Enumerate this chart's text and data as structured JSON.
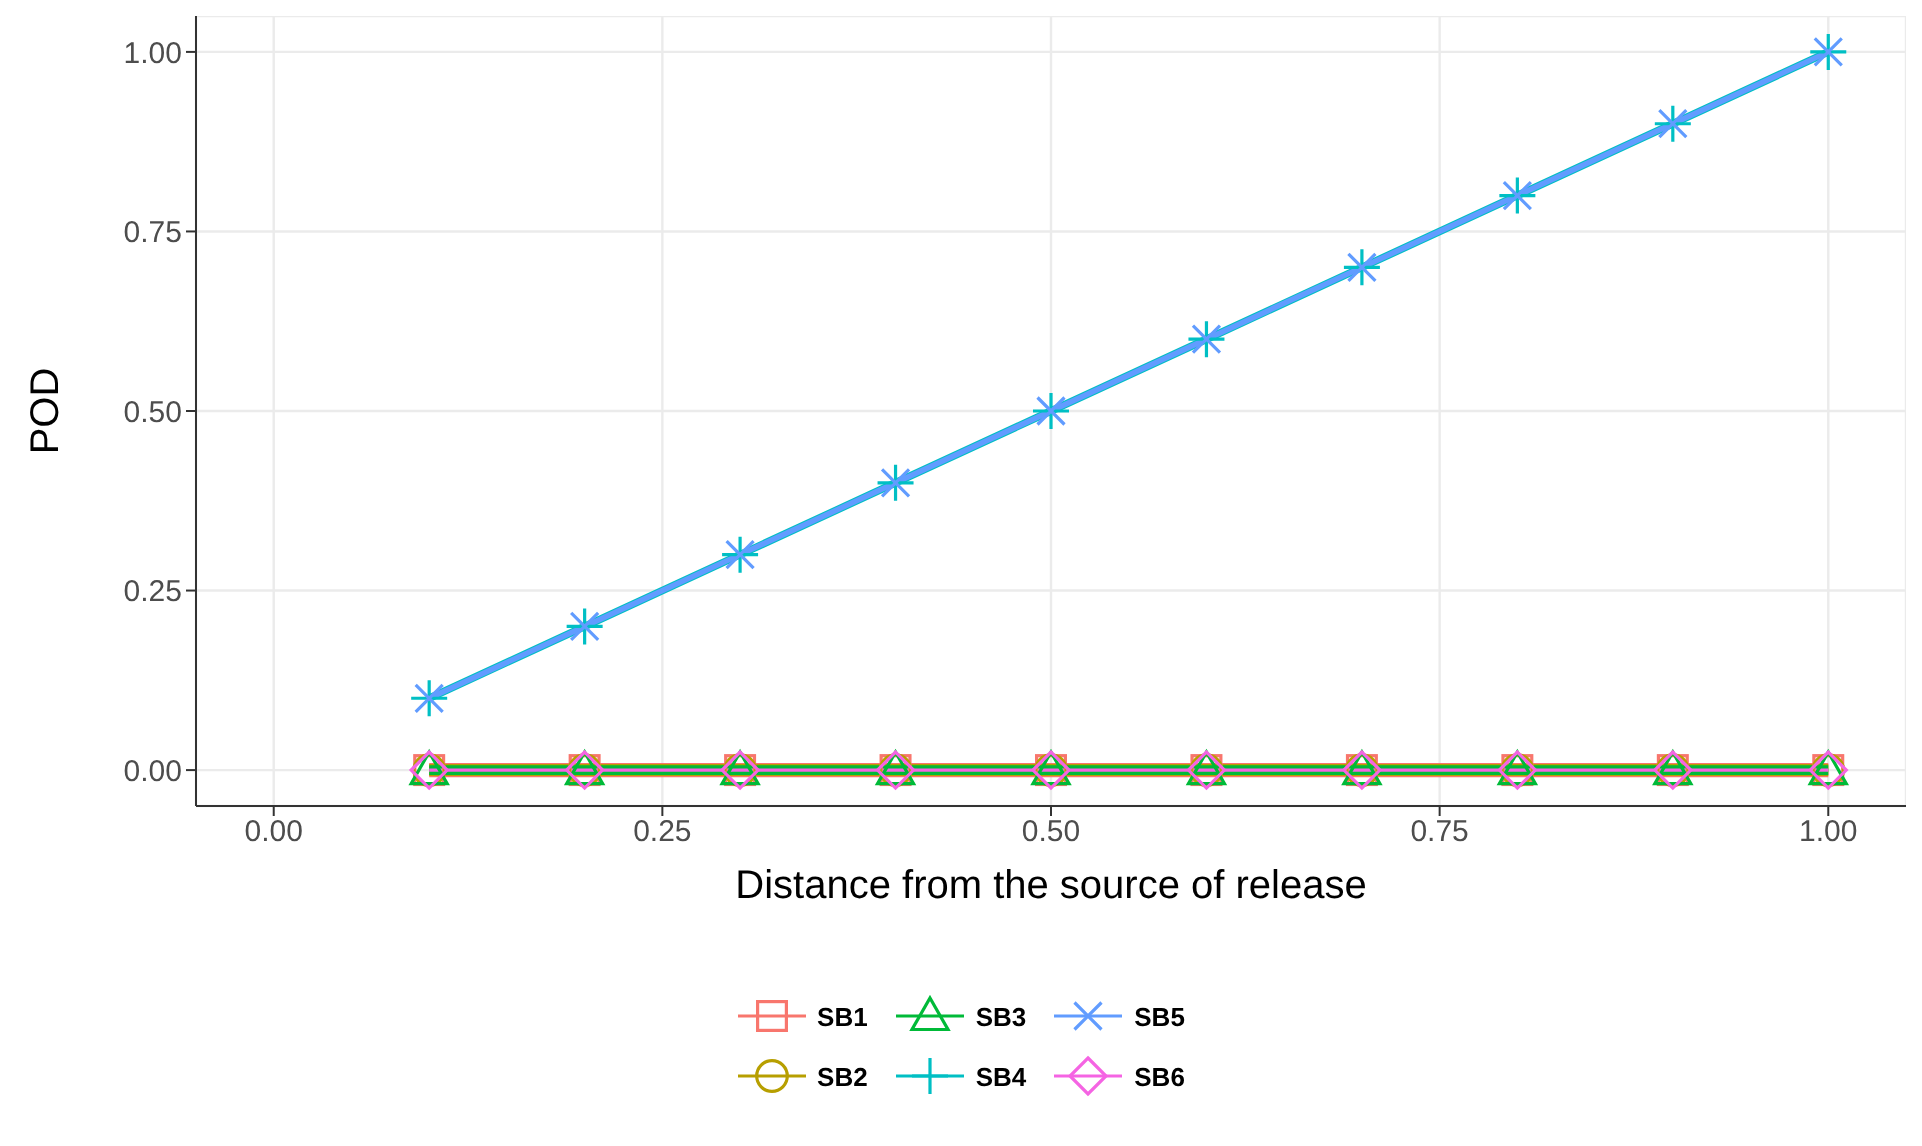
{
  "chart_data": {
    "type": "line",
    "xlabel": "Distance from the source of release",
    "ylabel": "POD",
    "x": [
      0.1,
      0.2,
      0.3,
      0.4,
      0.5,
      0.6,
      0.7,
      0.8,
      0.9,
      1.0
    ],
    "xlim": [
      -0.05,
      1.05
    ],
    "ylim": [
      -0.05,
      1.05
    ],
    "xticks": [
      {
        "value": 0,
        "label": "0.00"
      },
      {
        "value": 0.25,
        "label": "0.25"
      },
      {
        "value": 0.5,
        "label": "0.50"
      },
      {
        "value": 0.75,
        "label": "0.75"
      },
      {
        "value": 1,
        "label": "1.00"
      }
    ],
    "yticks": [
      {
        "value": 0,
        "label": "0.00"
      },
      {
        "value": 0.25,
        "label": "0.25"
      },
      {
        "value": 0.5,
        "label": "0.50"
      },
      {
        "value": 0.75,
        "label": "0.75"
      },
      {
        "value": 1,
        "label": "1.00"
      }
    ],
    "grid": true,
    "legend": "bottom",
    "line_style": "solid",
    "series": [
      {
        "name": "SB1",
        "color": "#f8766d",
        "marker": "square",
        "values": [
          0,
          0,
          0,
          0,
          0,
          0,
          0,
          0,
          0,
          0
        ]
      },
      {
        "name": "SB2",
        "color": "#b79f00",
        "marker": "circle",
        "values": [
          0,
          0,
          0,
          0,
          0,
          0,
          0,
          0,
          0,
          0
        ]
      },
      {
        "name": "SB3",
        "color": "#00ba38",
        "marker": "triangle",
        "values": [
          0,
          0,
          0,
          0,
          0,
          0,
          0,
          0,
          0,
          0
        ]
      },
      {
        "name": "SB4",
        "color": "#00bfc4",
        "marker": "cross",
        "values": [
          0.1,
          0.2,
          0.3,
          0.4,
          0.5,
          0.6,
          0.7,
          0.8,
          0.9,
          1.0
        ]
      },
      {
        "name": "SB5",
        "color": "#619cff",
        "marker": "x",
        "values": [
          0.1,
          0.2,
          0.3,
          0.4,
          0.5,
          0.6,
          0.7,
          0.8,
          0.9,
          1.0
        ]
      },
      {
        "name": "SB6",
        "color": "#f564e3",
        "marker": "diamond",
        "values": [
          0,
          0,
          0,
          0,
          0,
          0,
          0,
          0,
          0,
          0
        ]
      }
    ]
  }
}
